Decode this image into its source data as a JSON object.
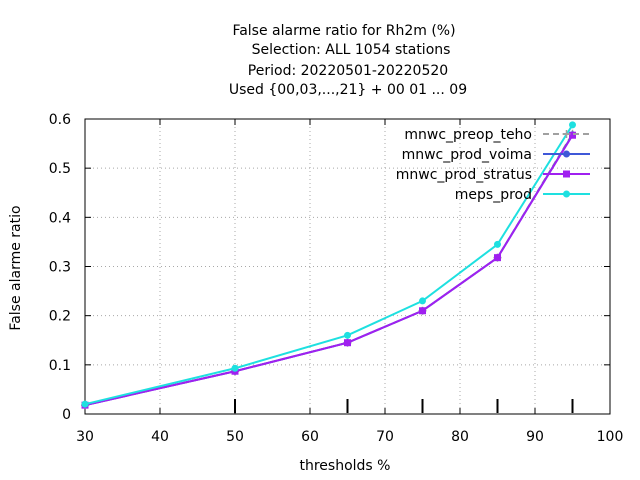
{
  "chart_data": {
    "type": "line",
    "title_lines": [
      "False alarme ratio  for Rh2m (%)",
      "Selection: ALL    1054 stations",
      "Period: 20220501-20220520",
      "Used {00,03,...,21} + 00 01 ... 09"
    ],
    "xlabel": "thresholds %",
    "ylabel": "False alarme ratio",
    "xlim": [
      30,
      100
    ],
    "ylim": [
      0,
      0.6
    ],
    "xticks": [
      30,
      40,
      50,
      60,
      70,
      80,
      90,
      100
    ],
    "yticks": [
      0,
      0.1,
      0.2,
      0.3,
      0.4,
      0.5,
      0.6
    ],
    "grid": true,
    "legend_position": "top-right",
    "threshold_markers": [
      50,
      65,
      75,
      85,
      95
    ],
    "series": [
      {
        "name": "mnwc_preop_teho",
        "color": "#a0a0a0",
        "dash": "6,4",
        "marker": "plus",
        "x": [
          30,
          50,
          65,
          75,
          85,
          95
        ],
        "y": [
          0.018,
          0.087,
          0.145,
          0.21,
          0.318,
          0.57
        ]
      },
      {
        "name": "mnwc_prod_voima",
        "color": "#3f58d8",
        "dash": "",
        "marker": "circle",
        "x": [
          30,
          50,
          65,
          75,
          85,
          95
        ],
        "y": [
          0.018,
          0.087,
          0.145,
          0.21,
          0.318,
          0.568
        ]
      },
      {
        "name": "mnwc_prod_stratus",
        "color": "#a020f0",
        "dash": "",
        "marker": "square",
        "x": [
          30,
          50,
          65,
          75,
          85,
          95
        ],
        "y": [
          0.018,
          0.087,
          0.145,
          0.21,
          0.318,
          0.567
        ]
      },
      {
        "name": "meps_prod",
        "color": "#1ee0e0",
        "dash": "",
        "marker": "circle",
        "x": [
          30,
          50,
          65,
          75,
          85,
          95
        ],
        "y": [
          0.02,
          0.093,
          0.16,
          0.23,
          0.345,
          0.588
        ]
      }
    ]
  }
}
